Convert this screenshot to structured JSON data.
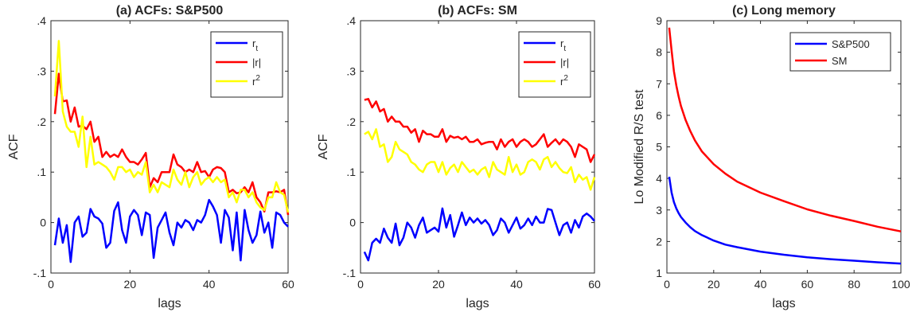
{
  "chart_data": [
    {
      "type": "line",
      "title": "(a) ACFs: S&P500",
      "xlabel": "lags",
      "ylabel": "ACF",
      "xlim": [
        0,
        60
      ],
      "ylim": [
        -0.1,
        0.4
      ],
      "xticks": [
        0,
        20,
        40,
        60
      ],
      "yticks": [
        -0.1,
        0,
        0.1,
        0.2,
        0.3,
        0.4
      ],
      "legend_position": "top-right",
      "series": [
        {
          "name": "r",
          "subscript": "t",
          "color": "#0000ff",
          "x": [
            1,
            2,
            3,
            4,
            5,
            6,
            7,
            8,
            9,
            10,
            11,
            12,
            13,
            14,
            15,
            16,
            17,
            18,
            19,
            20,
            21,
            22,
            23,
            24,
            25,
            26,
            27,
            28,
            29,
            30,
            31,
            32,
            33,
            34,
            35,
            36,
            37,
            38,
            39,
            40,
            41,
            42,
            43,
            44,
            45,
            46,
            47,
            48,
            49,
            50,
            51,
            52,
            53,
            54,
            55,
            56,
            57,
            58,
            59,
            60
          ],
          "values": [
            -0.045,
            0.008,
            -0.04,
            -0.005,
            -0.078,
            0.0,
            0.012,
            -0.028,
            -0.02,
            0.027,
            0.012,
            0.008,
            -0.002,
            -0.05,
            -0.04,
            0.023,
            0.04,
            -0.015,
            -0.04,
            0.012,
            0.025,
            0.015,
            -0.025,
            0.02,
            0.015,
            -0.07,
            -0.01,
            0.005,
            0.02,
            -0.02,
            -0.045,
            0.0,
            -0.01,
            0.005,
            0.0,
            -0.015,
            0.005,
            0.0,
            0.015,
            0.045,
            0.032,
            0.015,
            -0.04,
            0.025,
            0.01,
            -0.055,
            0.02,
            -0.075,
            0.025,
            -0.015,
            -0.04,
            -0.025,
            0.022,
            -0.02,
            0.0,
            -0.05,
            0.02,
            0.015,
            0.0,
            -0.008
          ]
        },
        {
          "name": "|r|",
          "color": "#ff0000",
          "x": [
            1,
            2,
            3,
            4,
            5,
            6,
            7,
            8,
            9,
            10,
            11,
            12,
            13,
            14,
            15,
            16,
            17,
            18,
            19,
            20,
            21,
            22,
            23,
            24,
            25,
            26,
            27,
            28,
            29,
            30,
            31,
            32,
            33,
            34,
            35,
            36,
            37,
            38,
            39,
            40,
            41,
            42,
            43,
            44,
            45,
            46,
            47,
            48,
            49,
            50,
            51,
            52,
            53,
            54,
            55,
            56,
            57,
            58,
            59,
            60
          ],
          "values": [
            0.215,
            0.295,
            0.24,
            0.242,
            0.2,
            0.228,
            0.19,
            0.192,
            0.185,
            0.2,
            0.16,
            0.17,
            0.13,
            0.14,
            0.13,
            0.135,
            0.13,
            0.145,
            0.13,
            0.12,
            0.12,
            0.115,
            0.125,
            0.138,
            0.07,
            0.088,
            0.08,
            0.1,
            0.1,
            0.1,
            0.135,
            0.115,
            0.11,
            0.1,
            0.105,
            0.1,
            0.12,
            0.1,
            0.102,
            0.09,
            0.105,
            0.11,
            0.108,
            0.1,
            0.06,
            0.065,
            0.058,
            0.06,
            0.07,
            0.06,
            0.08,
            0.05,
            0.04,
            0.022,
            0.06,
            0.06,
            0.062,
            0.06,
            0.065,
            0.015
          ]
        },
        {
          "name": "r",
          "superscript": "2",
          "color": "#ffff00",
          "x": [
            1,
            2,
            3,
            4,
            5,
            6,
            7,
            8,
            9,
            10,
            11,
            12,
            13,
            14,
            15,
            16,
            17,
            18,
            19,
            20,
            21,
            22,
            23,
            24,
            25,
            26,
            27,
            28,
            29,
            30,
            31,
            32,
            33,
            34,
            35,
            36,
            37,
            38,
            39,
            40,
            41,
            42,
            43,
            44,
            45,
            46,
            47,
            48,
            49,
            50,
            51,
            52,
            53,
            54,
            55,
            56,
            57,
            58,
            59,
            60
          ],
          "values": [
            0.25,
            0.36,
            0.22,
            0.19,
            0.18,
            0.18,
            0.15,
            0.21,
            0.11,
            0.17,
            0.115,
            0.12,
            0.115,
            0.11,
            0.1,
            0.085,
            0.11,
            0.11,
            0.1,
            0.105,
            0.09,
            0.1,
            0.095,
            0.12,
            0.06,
            0.075,
            0.06,
            0.08,
            0.075,
            0.07,
            0.105,
            0.085,
            0.075,
            0.1,
            0.07,
            0.09,
            0.1,
            0.075,
            0.085,
            0.09,
            0.08,
            0.09,
            0.08,
            0.085,
            0.05,
            0.06,
            0.04,
            0.065,
            0.065,
            0.05,
            0.06,
            0.04,
            0.03,
            0.025,
            0.05,
            0.05,
            0.08,
            0.06,
            0.055,
            0.02
          ]
        }
      ]
    },
    {
      "type": "line",
      "title": "(b) ACFs: SM",
      "xlabel": "lags",
      "ylabel": "ACF",
      "xlim": [
        0,
        60
      ],
      "ylim": [
        -0.1,
        0.4
      ],
      "xticks": [
        0,
        20,
        40,
        60
      ],
      "yticks": [
        -0.1,
        0,
        0.1,
        0.2,
        0.3,
        0.4
      ],
      "legend_position": "top-right",
      "series": [
        {
          "name": "r",
          "subscript": "t",
          "color": "#0000ff",
          "x": [
            1,
            2,
            3,
            4,
            5,
            6,
            7,
            8,
            9,
            10,
            11,
            12,
            13,
            14,
            15,
            16,
            17,
            18,
            19,
            20,
            21,
            22,
            23,
            24,
            25,
            26,
            27,
            28,
            29,
            30,
            31,
            32,
            33,
            34,
            35,
            36,
            37,
            38,
            39,
            40,
            41,
            42,
            43,
            44,
            45,
            46,
            47,
            48,
            49,
            50,
            51,
            52,
            53,
            54,
            55,
            56,
            57,
            58,
            59,
            60
          ],
          "values": [
            -0.058,
            -0.075,
            -0.04,
            -0.032,
            -0.04,
            -0.012,
            -0.03,
            -0.04,
            -0.002,
            -0.045,
            -0.03,
            0.0,
            -0.01,
            -0.03,
            -0.005,
            0.01,
            -0.02,
            -0.015,
            -0.01,
            -0.018,
            0.028,
            -0.01,
            0.015,
            -0.028,
            -0.005,
            0.02,
            -0.005,
            0.01,
            0.0,
            0.008,
            -0.002,
            0.005,
            -0.005,
            -0.025,
            -0.015,
            0.008,
            0.0,
            -0.02,
            -0.005,
            0.01,
            -0.012,
            -0.005,
            0.008,
            -0.005,
            0.012,
            0.0,
            0.0,
            0.027,
            0.025,
            0.0,
            -0.025,
            -0.005,
            0.0,
            -0.02,
            0.005,
            -0.01,
            0.012,
            0.018,
            0.012,
            0.003
          ]
        },
        {
          "name": "|r|",
          "color": "#ff0000",
          "x": [
            1,
            2,
            3,
            4,
            5,
            6,
            7,
            8,
            9,
            10,
            11,
            12,
            13,
            14,
            15,
            16,
            17,
            18,
            19,
            20,
            21,
            22,
            23,
            24,
            25,
            26,
            27,
            28,
            29,
            30,
            31,
            32,
            33,
            34,
            35,
            36,
            37,
            38,
            39,
            40,
            41,
            42,
            43,
            44,
            45,
            46,
            47,
            48,
            49,
            50,
            51,
            52,
            53,
            54,
            55,
            56,
            57,
            58,
            59,
            60
          ],
          "values": [
            0.243,
            0.245,
            0.228,
            0.24,
            0.22,
            0.225,
            0.2,
            0.21,
            0.2,
            0.2,
            0.19,
            0.19,
            0.178,
            0.185,
            0.16,
            0.182,
            0.175,
            0.175,
            0.17,
            0.17,
            0.185,
            0.16,
            0.172,
            0.168,
            0.17,
            0.165,
            0.17,
            0.16,
            0.16,
            0.165,
            0.155,
            0.158,
            0.16,
            0.16,
            0.145,
            0.165,
            0.15,
            0.16,
            0.165,
            0.15,
            0.16,
            0.165,
            0.16,
            0.15,
            0.155,
            0.165,
            0.175,
            0.15,
            0.158,
            0.165,
            0.155,
            0.165,
            0.16,
            0.15,
            0.13,
            0.155,
            0.15,
            0.145,
            0.12,
            0.135
          ]
        },
        {
          "name": "r",
          "superscript": "2",
          "color": "#ffff00",
          "x": [
            1,
            2,
            3,
            4,
            5,
            6,
            7,
            8,
            9,
            10,
            11,
            12,
            13,
            14,
            15,
            16,
            17,
            18,
            19,
            20,
            21,
            22,
            23,
            24,
            25,
            26,
            27,
            28,
            29,
            30,
            31,
            32,
            33,
            34,
            35,
            36,
            37,
            38,
            39,
            40,
            41,
            42,
            43,
            44,
            45,
            46,
            47,
            48,
            49,
            50,
            51,
            52,
            53,
            54,
            55,
            56,
            57,
            58,
            59,
            60
          ],
          "values": [
            0.175,
            0.18,
            0.165,
            0.185,
            0.15,
            0.155,
            0.12,
            0.13,
            0.16,
            0.145,
            0.14,
            0.135,
            0.12,
            0.115,
            0.105,
            0.1,
            0.115,
            0.12,
            0.12,
            0.1,
            0.12,
            0.095,
            0.108,
            0.115,
            0.1,
            0.12,
            0.11,
            0.1,
            0.105,
            0.095,
            0.105,
            0.11,
            0.09,
            0.12,
            0.105,
            0.1,
            0.095,
            0.13,
            0.1,
            0.115,
            0.095,
            0.1,
            0.12,
            0.125,
            0.12,
            0.105,
            0.125,
            0.13,
            0.11,
            0.12,
            0.108,
            0.1,
            0.098,
            0.11,
            0.08,
            0.095,
            0.085,
            0.09,
            0.065,
            0.09
          ]
        }
      ]
    },
    {
      "type": "line",
      "title": "(c) Long memory",
      "xlabel": "lags",
      "ylabel": "Lo Modified R/S test",
      "xlim": [
        0,
        100
      ],
      "ylim": [
        1,
        9
      ],
      "xticks": [
        0,
        20,
        40,
        60,
        80,
        100
      ],
      "yticks": [
        1,
        2,
        3,
        4,
        5,
        6,
        7,
        8,
        9
      ],
      "legend_position": "top-right",
      "series": [
        {
          "name": "S&P500",
          "color": "#0000ff",
          "x": [
            1,
            2,
            3,
            4,
            5,
            6,
            8,
            10,
            12,
            15,
            20,
            25,
            30,
            40,
            50,
            60,
            70,
            80,
            90,
            100
          ],
          "values": [
            4.05,
            3.55,
            3.25,
            3.05,
            2.9,
            2.78,
            2.6,
            2.45,
            2.33,
            2.2,
            2.03,
            1.9,
            1.82,
            1.68,
            1.58,
            1.5,
            1.44,
            1.39,
            1.34,
            1.3
          ]
        },
        {
          "name": "SM",
          "color": "#ff0000",
          "x": [
            1,
            2,
            3,
            4,
            5,
            6,
            8,
            10,
            12,
            15,
            20,
            25,
            30,
            40,
            50,
            60,
            70,
            80,
            90,
            100
          ],
          "values": [
            8.78,
            8.05,
            7.4,
            6.95,
            6.6,
            6.3,
            5.85,
            5.5,
            5.2,
            4.85,
            4.45,
            4.15,
            3.9,
            3.55,
            3.28,
            3.02,
            2.82,
            2.65,
            2.47,
            2.32
          ]
        }
      ]
    }
  ]
}
